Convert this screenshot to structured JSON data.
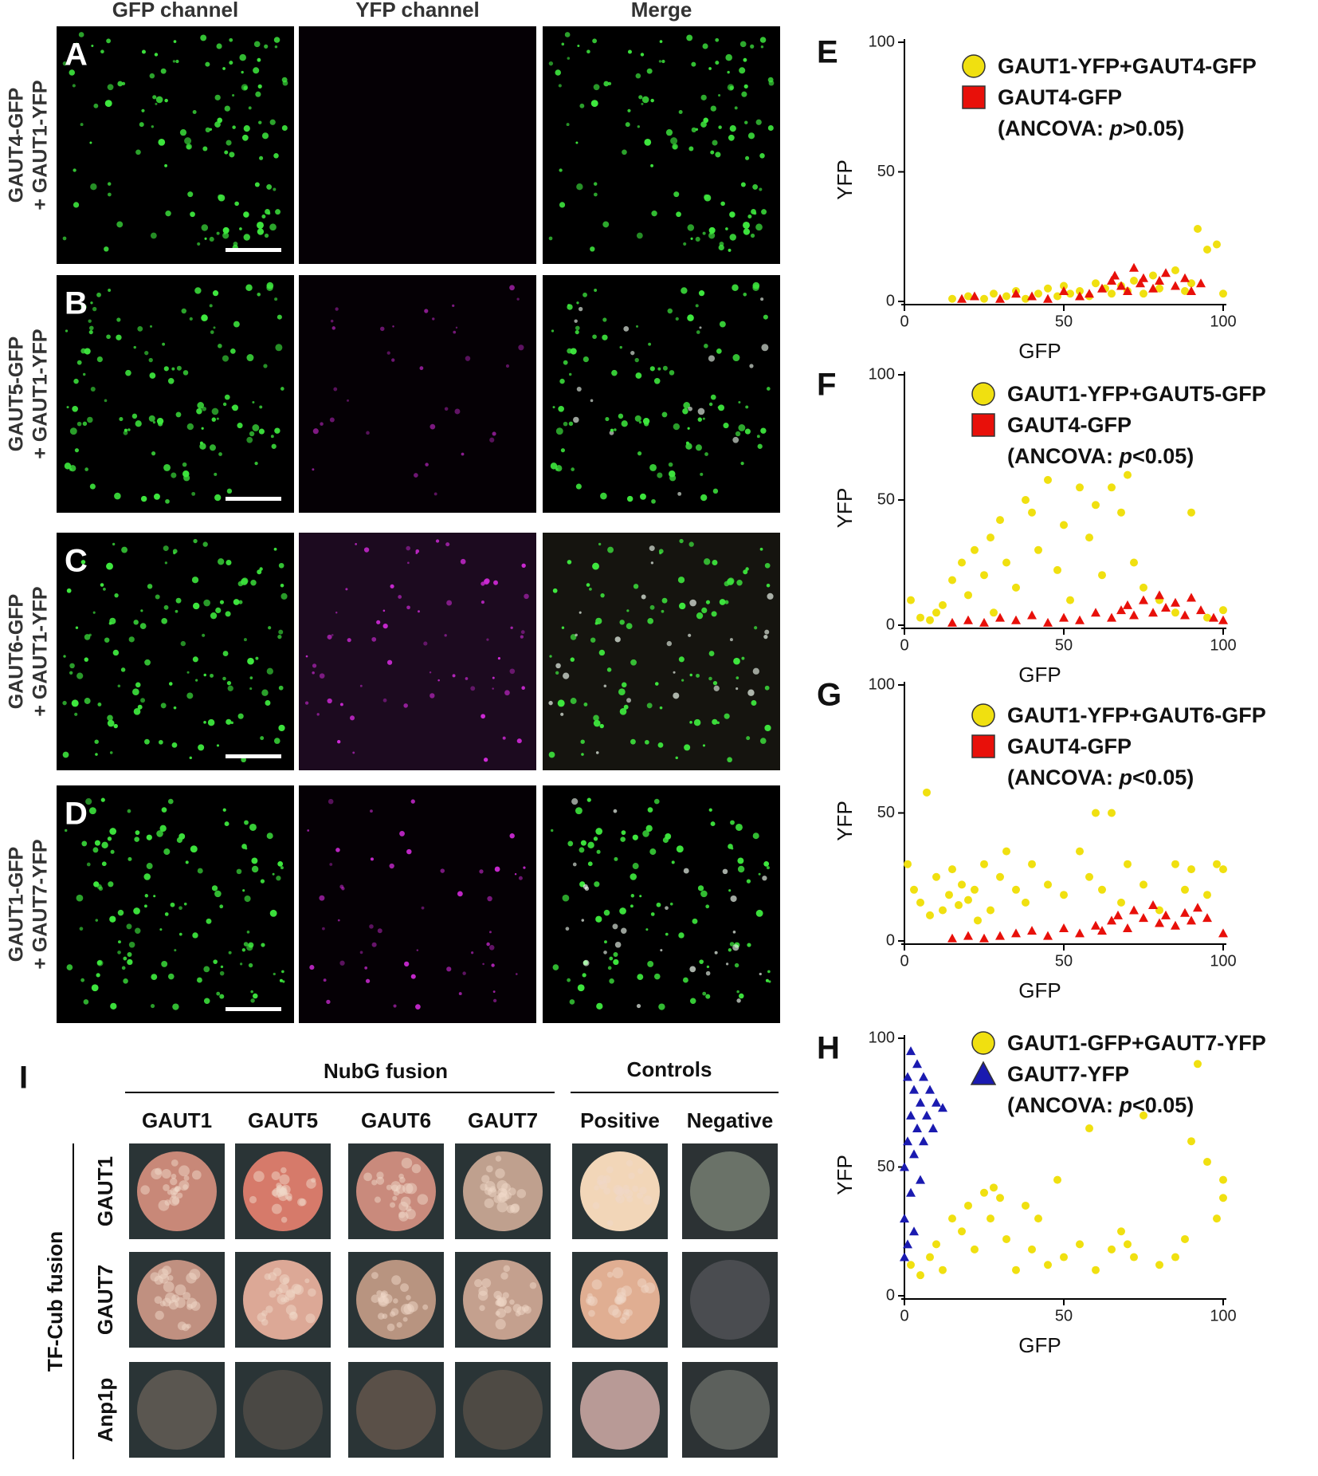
{
  "micro": {
    "columns": [
      "GFP channel",
      "YFP channel",
      "Merge"
    ],
    "rows": [
      {
        "panel": "A",
        "label_lines": [
          "GAUT4-GFP",
          "+ GAUT1-YFP"
        ]
      },
      {
        "panel": "B",
        "label_lines": [
          "GAUT5-GFP",
          "+ GAUT1-YFP"
        ]
      },
      {
        "panel": "C",
        "label_lines": [
          "GAUT6-GFP",
          "+ GAUT1-YFP"
        ]
      },
      {
        "panel": "D",
        "label_lines": [
          "GAUT1-GFP",
          "+ GAUT7-YFP"
        ]
      }
    ]
  },
  "chart_data": [
    {
      "type": "scatter",
      "panel": "E",
      "x_label": "GFP",
      "y_label": "YFP",
      "xlim": [
        0,
        100
      ],
      "ylim": [
        0,
        100
      ],
      "xticks": [
        0,
        50,
        100
      ],
      "yticks": [
        0,
        50,
        100
      ],
      "annotation": {
        "prefix": "(ANCOVA: ",
        "italic": "p",
        "suffix": ">0.05)"
      },
      "series": [
        {
          "name": "GAUT1-YFP+GAUT4-GFP",
          "color": "#f0e010",
          "marker": "circle",
          "legend_marker": "circle",
          "x": [
            15,
            20,
            25,
            28,
            32,
            35,
            38,
            42,
            45,
            48,
            50,
            52,
            55,
            58,
            60,
            63,
            65,
            68,
            70,
            72,
            75,
            78,
            80,
            85,
            88,
            90,
            92,
            95,
            98,
            100
          ],
          "y": [
            1,
            2,
            1,
            3,
            2,
            4,
            1,
            3,
            5,
            2,
            6,
            3,
            4,
            2,
            7,
            5,
            3,
            6,
            4,
            8,
            3,
            10,
            5,
            12,
            4,
            7,
            28,
            20,
            22,
            3
          ]
        },
        {
          "name": "GAUT4-GFP",
          "color": "#e8100a",
          "marker": "triangle",
          "legend_marker": "square",
          "x": [
            18,
            22,
            30,
            35,
            40,
            45,
            50,
            55,
            58,
            62,
            65,
            66,
            68,
            70,
            72,
            74,
            75,
            78,
            80,
            82,
            85,
            88,
            90,
            93
          ],
          "y": [
            1,
            2,
            1,
            3,
            2,
            1,
            4,
            2,
            3,
            5,
            8,
            10,
            6,
            4,
            13,
            7,
            9,
            5,
            8,
            11,
            6,
            9,
            4,
            7
          ]
        }
      ]
    },
    {
      "type": "scatter",
      "panel": "F",
      "x_label": "GFP",
      "y_label": "YFP",
      "xlim": [
        0,
        100
      ],
      "ylim": [
        0,
        100
      ],
      "xticks": [
        0,
        50,
        100
      ],
      "yticks": [
        0,
        50,
        100
      ],
      "annotation": {
        "prefix": "(ANCOVA: ",
        "italic": "p",
        "suffix": "<0.05)"
      },
      "series": [
        {
          "name": "GAUT1-YFP+GAUT5-GFP",
          "color": "#f0e010",
          "marker": "circle",
          "legend_marker": "circle",
          "x": [
            2,
            5,
            8,
            10,
            12,
            15,
            18,
            20,
            22,
            25,
            27,
            28,
            30,
            32,
            35,
            38,
            40,
            42,
            45,
            48,
            50,
            52,
            55,
            58,
            60,
            62,
            65,
            68,
            70,
            72,
            75,
            80,
            85,
            90,
            95,
            100
          ],
          "y": [
            10,
            3,
            2,
            5,
            8,
            18,
            25,
            12,
            30,
            20,
            35,
            5,
            42,
            25,
            15,
            50,
            45,
            30,
            58,
            22,
            40,
            10,
            55,
            35,
            48,
            20,
            55,
            45,
            60,
            25,
            15,
            10,
            5,
            45,
            3,
            6
          ]
        },
        {
          "name": "GAUT4-GFP",
          "color": "#e8100a",
          "marker": "triangle",
          "legend_marker": "square",
          "x": [
            15,
            20,
            25,
            30,
            35,
            40,
            45,
            50,
            55,
            60,
            65,
            68,
            70,
            72,
            75,
            78,
            80,
            82,
            85,
            88,
            90,
            93,
            97,
            100
          ],
          "y": [
            1,
            2,
            1,
            3,
            2,
            4,
            1,
            3,
            2,
            5,
            3,
            6,
            8,
            4,
            10,
            5,
            12,
            7,
            9,
            4,
            11,
            6,
            3,
            2
          ]
        }
      ]
    },
    {
      "type": "scatter",
      "panel": "G",
      "x_label": "GFP",
      "y_label": "YFP",
      "xlim": [
        0,
        100
      ],
      "ylim": [
        0,
        100
      ],
      "xticks": [
        0,
        50,
        100
      ],
      "yticks": [
        0,
        50,
        100
      ],
      "annotation": {
        "prefix": "(ANCOVA: ",
        "italic": "p",
        "suffix": "<0.05)"
      },
      "series": [
        {
          "name": "GAUT1-YFP+GAUT6-GFP",
          "color": "#f0e010",
          "marker": "circle",
          "legend_marker": "circle",
          "x": [
            1,
            3,
            5,
            7,
            8,
            10,
            12,
            14,
            15,
            17,
            18,
            20,
            22,
            23,
            25,
            27,
            30,
            32,
            35,
            38,
            40,
            45,
            50,
            55,
            58,
            60,
            62,
            65,
            68,
            70,
            75,
            80,
            85,
            88,
            90,
            95,
            98,
            100
          ],
          "y": [
            30,
            20,
            15,
            58,
            10,
            25,
            12,
            18,
            28,
            14,
            22,
            16,
            20,
            8,
            30,
            12,
            25,
            35,
            20,
            15,
            30,
            22,
            18,
            35,
            25,
            50,
            20,
            50,
            15,
            30,
            22,
            12,
            30,
            20,
            28,
            18,
            30,
            28
          ]
        },
        {
          "name": "GAUT4-GFP",
          "color": "#e8100a",
          "marker": "triangle",
          "legend_marker": "square",
          "x": [
            15,
            20,
            25,
            30,
            35,
            40,
            45,
            50,
            55,
            60,
            62,
            65,
            67,
            70,
            72,
            75,
            78,
            80,
            82,
            85,
            88,
            90,
            92,
            95,
            100
          ],
          "y": [
            1,
            2,
            1,
            2,
            3,
            4,
            2,
            5,
            3,
            6,
            4,
            8,
            10,
            5,
            12,
            9,
            14,
            7,
            10,
            6,
            11,
            8,
            13,
            9,
            3
          ]
        }
      ]
    },
    {
      "type": "scatter",
      "panel": "H",
      "x_label": "GFP",
      "y_label": "YFP",
      "xlim": [
        0,
        100
      ],
      "ylim": [
        0,
        100
      ],
      "xticks": [
        0,
        50,
        100
      ],
      "yticks": [
        0,
        50,
        100
      ],
      "annotation": {
        "prefix": "(ANCOVA: ",
        "italic": "p",
        "suffix": "<0.05)"
      },
      "series": [
        {
          "name": "GAUT1-GFP+GAUT7-YFP",
          "color": "#f0e010",
          "marker": "circle",
          "legend_marker": "circle",
          "x": [
            2,
            5,
            8,
            10,
            12,
            15,
            18,
            20,
            22,
            25,
            27,
            28,
            30,
            32,
            35,
            38,
            40,
            42,
            45,
            48,
            50,
            55,
            58,
            60,
            65,
            68,
            70,
            72,
            75,
            80,
            85,
            88,
            90,
            92,
            95,
            98,
            100,
            100
          ],
          "y": [
            12,
            8,
            15,
            20,
            10,
            30,
            25,
            35,
            18,
            40,
            30,
            42,
            38,
            22,
            10,
            35,
            18,
            30,
            12,
            45,
            15,
            20,
            65,
            10,
            18,
            25,
            20,
            15,
            70,
            12,
            15,
            22,
            60,
            90,
            52,
            30,
            38,
            45
          ]
        },
        {
          "name": "GAUT7-YFP",
          "color": "#1a1ab0",
          "marker": "triangle",
          "legend_marker": "triangle",
          "x": [
            0,
            0,
            0,
            1,
            1,
            1,
            2,
            2,
            2,
            3,
            3,
            3,
            4,
            4,
            5,
            5,
            6,
            6,
            7,
            8,
            9,
            10,
            12
          ],
          "y": [
            15,
            30,
            50,
            20,
            60,
            85,
            40,
            70,
            95,
            25,
            55,
            80,
            65,
            90,
            45,
            75,
            60,
            85,
            70,
            80,
            65,
            75,
            73
          ]
        }
      ]
    }
  ],
  "yeast": {
    "panel": "I",
    "group_headers": [
      "NubG fusion",
      "Controls"
    ],
    "columns": [
      "GAUT1",
      "GAUT5",
      "GAUT6",
      "GAUT7",
      "Positive",
      "Negative"
    ],
    "side_label": "TF-Cub fusion",
    "rows": [
      "GAUT1",
      "GAUT7",
      "Anp1p"
    ]
  }
}
